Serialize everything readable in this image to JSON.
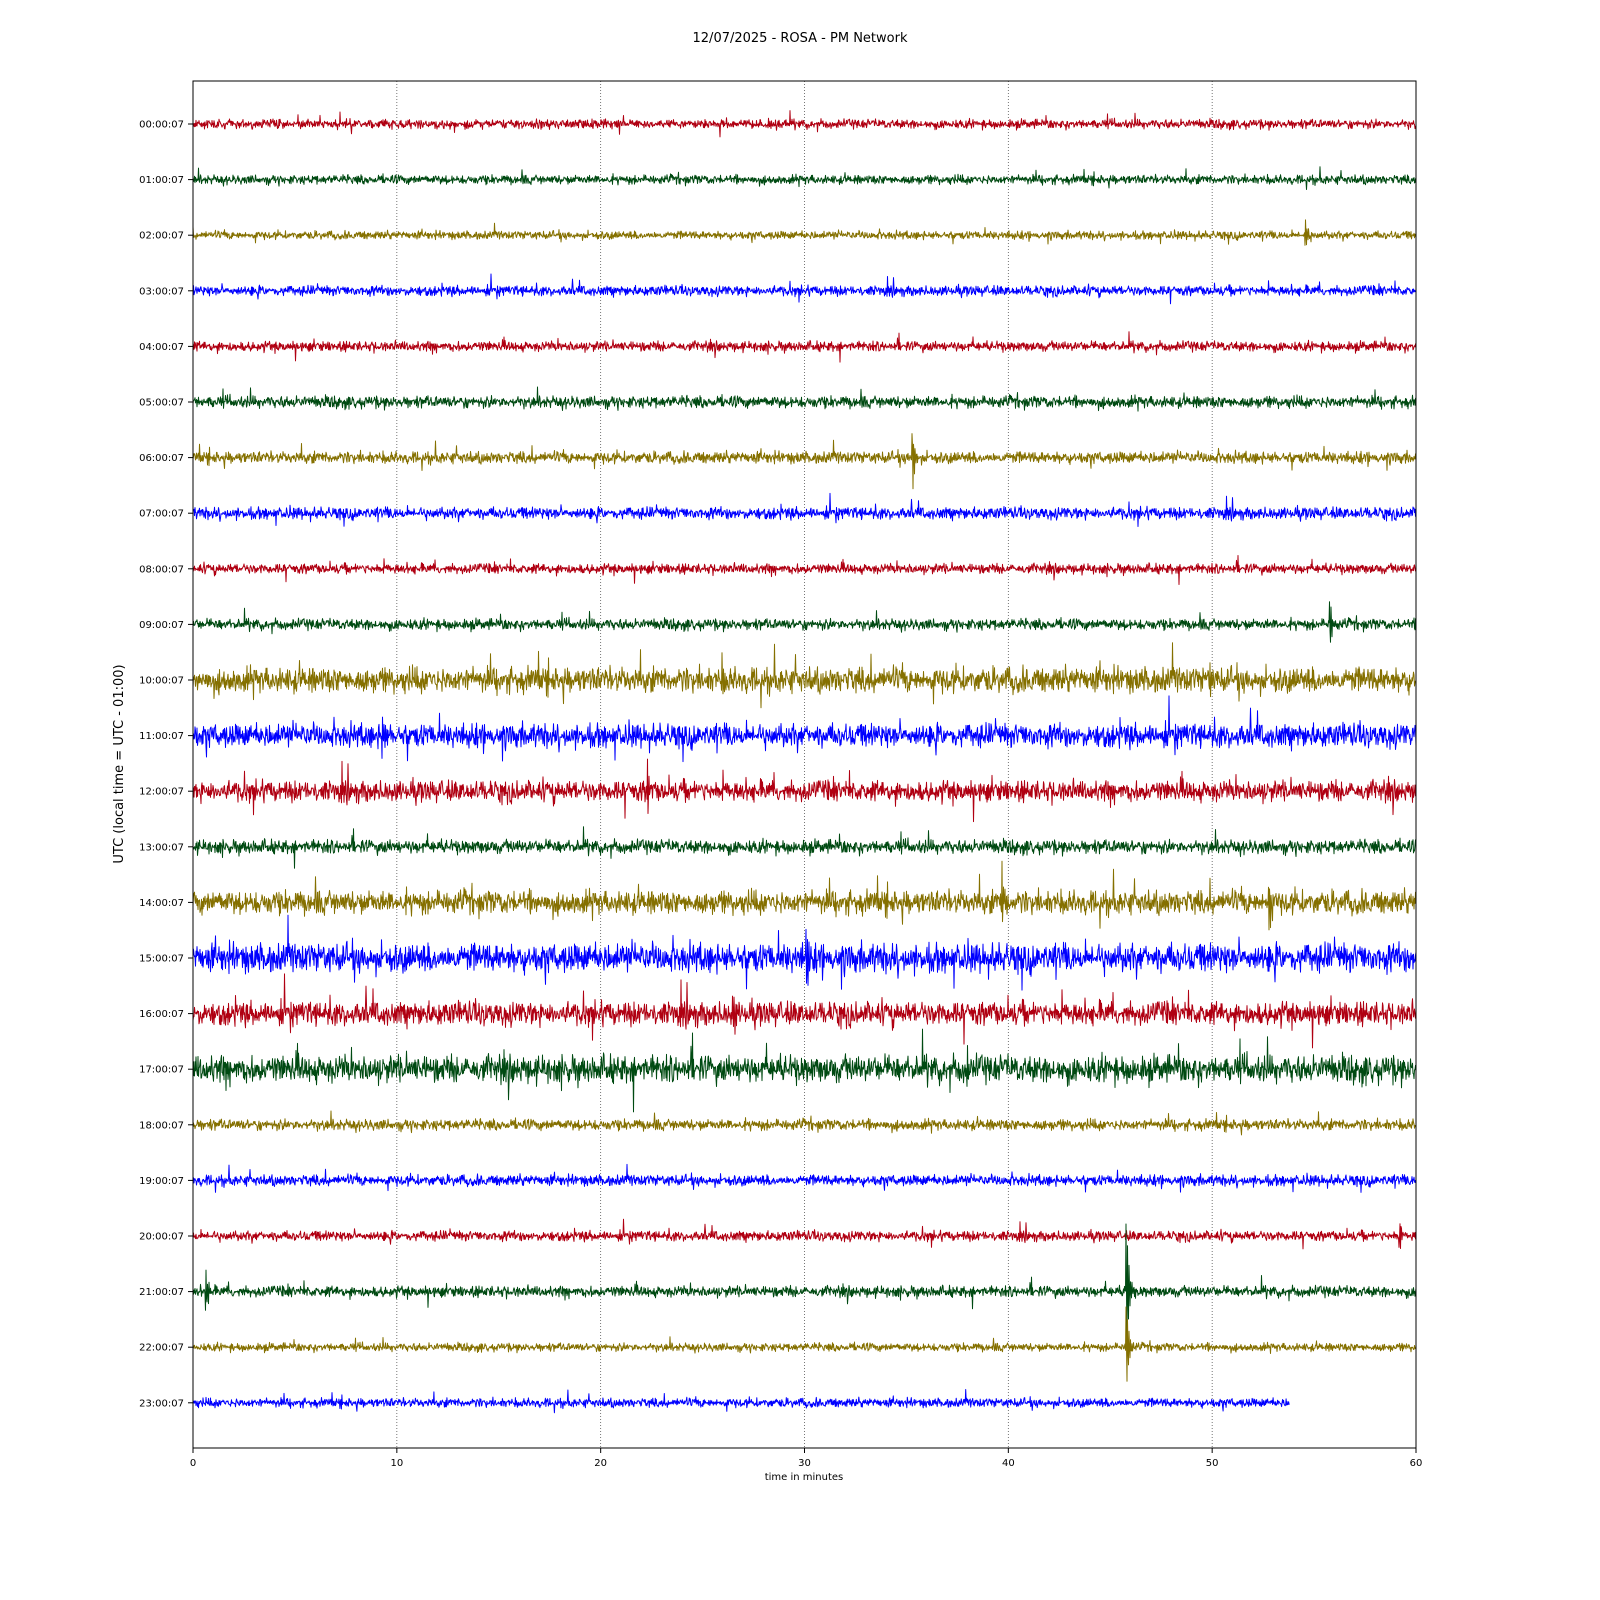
{
  "chart_data": {
    "type": "line",
    "title": "12/07/2025 - ROSA - PM Network",
    "xlabel": "time in minutes",
    "ylabel": "UTC (local time = UTC - 01:00)",
    "xlim": [
      0,
      60
    ],
    "xticks": [
      0,
      10,
      20,
      30,
      40,
      50,
      60
    ],
    "grid": "vertical dotted at x ticks",
    "colors": [
      "#B00012",
      "#004A12",
      "#857000",
      "#0000FF"
    ],
    "series": [
      {
        "name": "00:00:07",
        "end": 60,
        "noise": 1.0,
        "bursts": []
      },
      {
        "name": "01:00:07",
        "end": 60,
        "noise": 1.0,
        "bursts": []
      },
      {
        "name": "02:00:07",
        "end": 60,
        "noise": 0.9,
        "bursts": [
          {
            "t": 54.6,
            "amp": 14
          }
        ]
      },
      {
        "name": "03:00:07",
        "end": 60,
        "noise": 1.1,
        "bursts": []
      },
      {
        "name": "04:00:07",
        "end": 60,
        "noise": 1.1,
        "bursts": []
      },
      {
        "name": "05:00:07",
        "end": 60,
        "noise": 1.3,
        "bursts": []
      },
      {
        "name": "06:00:07",
        "end": 60,
        "noise": 1.3,
        "bursts": [
          {
            "t": 35.3,
            "amp": 40
          }
        ]
      },
      {
        "name": "07:00:07",
        "end": 60,
        "noise": 1.3,
        "bursts": []
      },
      {
        "name": "08:00:07",
        "end": 60,
        "noise": 1.1,
        "bursts": []
      },
      {
        "name": "09:00:07",
        "end": 60,
        "noise": 1.2,
        "bursts": [
          {
            "t": 55.8,
            "amp": 22
          }
        ]
      },
      {
        "name": "10:00:07",
        "end": 60,
        "noise": 2.8,
        "bursts": [
          {
            "t": 26.0,
            "amp": 20
          },
          {
            "t": 49.9,
            "amp": 28
          }
        ]
      },
      {
        "name": "11:00:07",
        "end": 60,
        "noise": 2.6,
        "bursts": [
          {
            "t": 9.3,
            "amp": 24
          }
        ]
      },
      {
        "name": "12:00:07",
        "end": 60,
        "noise": 2.3,
        "bursts": [
          {
            "t": 22.3,
            "amp": 30
          }
        ]
      },
      {
        "name": "13:00:07",
        "end": 60,
        "noise": 1.5,
        "bursts": []
      },
      {
        "name": "14:00:07",
        "end": 60,
        "noise": 2.6,
        "bursts": [
          {
            "t": 39.7,
            "amp": 40
          },
          {
            "t": 52.8,
            "amp": 30
          }
        ]
      },
      {
        "name": "15:00:07",
        "end": 60,
        "noise": 3.2,
        "bursts": [
          {
            "t": 30.1,
            "amp": 40
          }
        ]
      },
      {
        "name": "16:00:07",
        "end": 60,
        "noise": 2.6,
        "bursts": [
          {
            "t": 26.5,
            "amp": 25
          }
        ]
      },
      {
        "name": "17:00:07",
        "end": 60,
        "noise": 3.0,
        "bursts": [
          {
            "t": 38.0,
            "amp": 28
          }
        ]
      },
      {
        "name": "18:00:07",
        "end": 60,
        "noise": 1.2,
        "bursts": []
      },
      {
        "name": "19:00:07",
        "end": 60,
        "noise": 1.2,
        "bursts": []
      },
      {
        "name": "20:00:07",
        "end": 60,
        "noise": 1.1,
        "bursts": [
          {
            "t": 59.2,
            "amp": 14
          }
        ]
      },
      {
        "name": "21:00:07",
        "end": 60,
        "noise": 1.2,
        "bursts": [
          {
            "t": 0.65,
            "amp": 22
          },
          {
            "t": 45.8,
            "amp": 80
          }
        ]
      },
      {
        "name": "22:00:07",
        "end": 60,
        "noise": 0.9,
        "bursts": [
          {
            "t": 45.8,
            "amp": 50
          }
        ]
      },
      {
        "name": "23:00:07",
        "end": 53.8,
        "noise": 1.0,
        "bursts": []
      }
    ]
  }
}
